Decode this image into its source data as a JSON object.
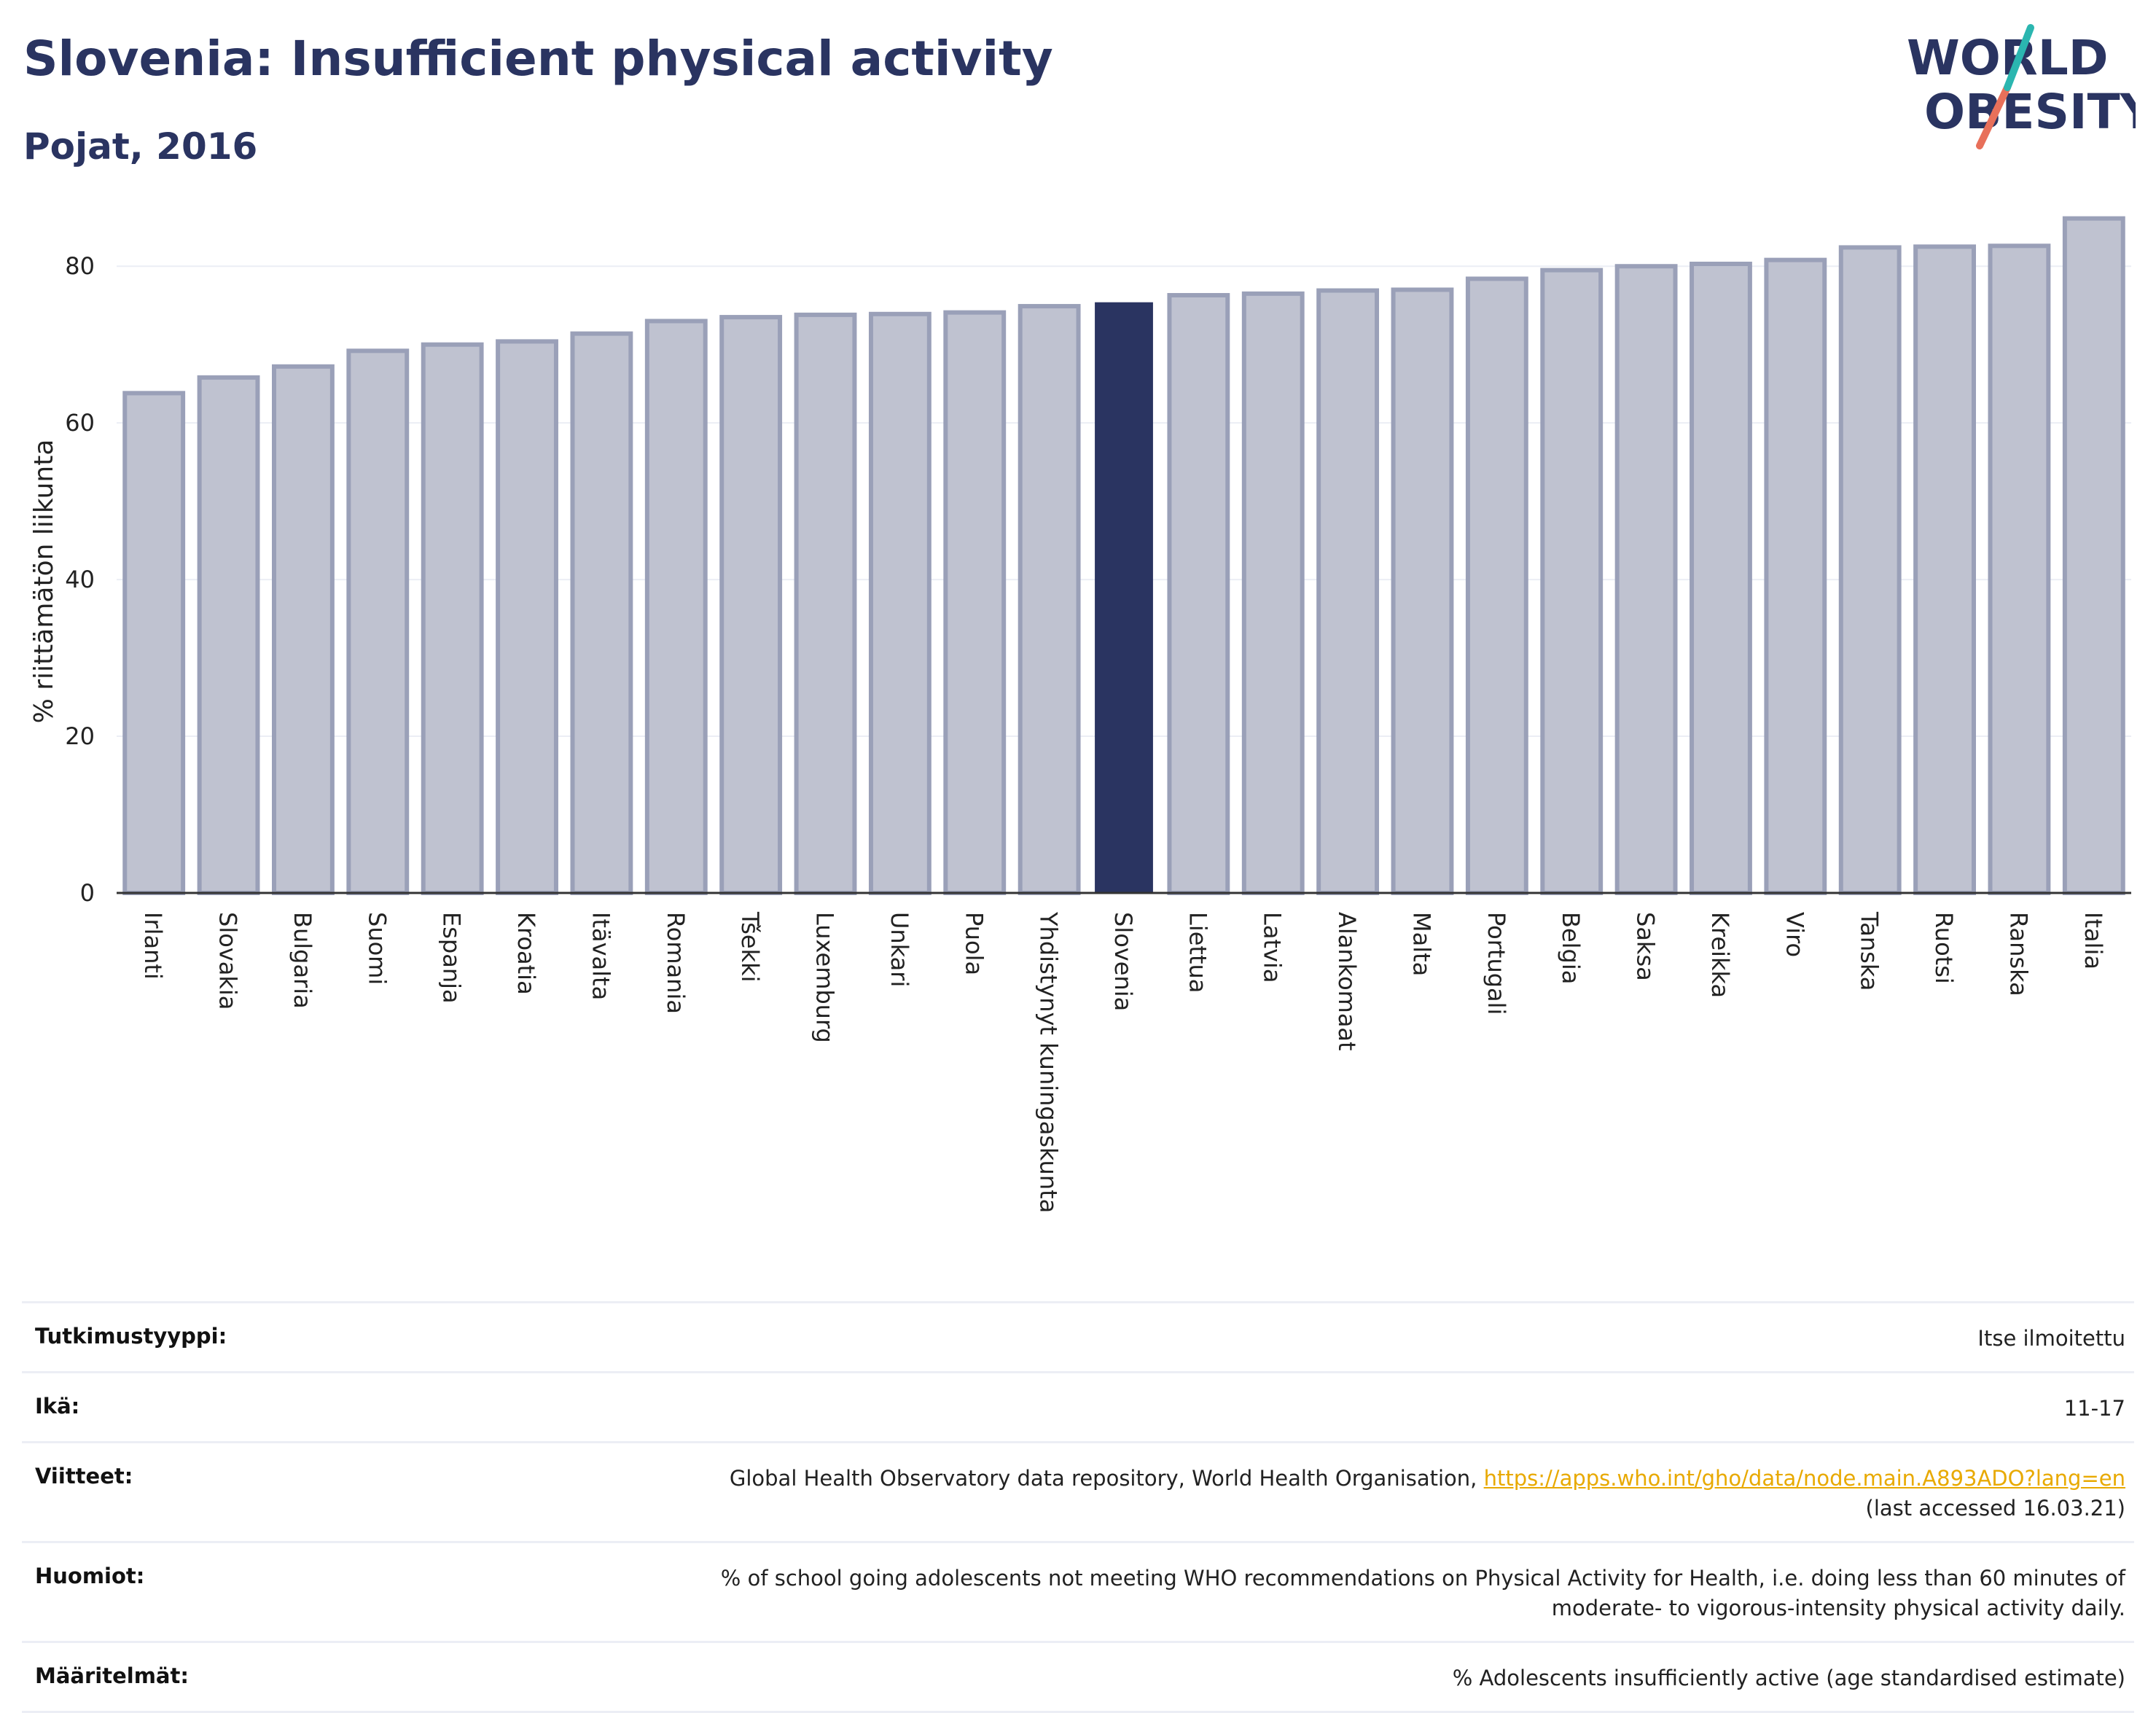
{
  "header": {
    "title": "Slovenia: Insufficient physical activity",
    "subtitle": "Pojat, 2016"
  },
  "logo": {
    "line1": "WORLD",
    "line2": "OBESITY"
  },
  "colors": {
    "bar": "#bfc2d0",
    "bar_edge": "#9aa0b8",
    "highlight": "#2a3461",
    "grid": "#eceef5"
  },
  "chart_data": {
    "type": "bar",
    "ylabel": "% riittämätön liikunta",
    "ylim": [
      0,
      87
    ],
    "yticks": [
      0,
      20,
      40,
      60,
      80
    ],
    "grid": true,
    "highlight": "Slovenia",
    "categories": [
      "Irlanti",
      "Slovakia",
      "Bulgaria",
      "Suomi",
      "Espanja",
      "Kroatia",
      "Itävalta",
      "Romania",
      "Tšekki",
      "Luxemburg",
      "Unkari",
      "Puola",
      "Yhdistynyt kuningaskunta",
      "Slovenia",
      "Liettua",
      "Latvia",
      "Alankomaat",
      "Malta",
      "Portugali",
      "Belgia",
      "Saksa",
      "Kreikka",
      "Viro",
      "Tanska",
      "Ruotsi",
      "Ranska",
      "Italia"
    ],
    "values": [
      63.8,
      65.8,
      67.2,
      69.2,
      70.0,
      70.4,
      71.4,
      73.0,
      73.5,
      73.8,
      73.9,
      74.1,
      74.9,
      75.4,
      76.3,
      76.5,
      76.9,
      77.0,
      78.4,
      79.5,
      80.0,
      80.3,
      80.8,
      82.4,
      82.5,
      82.6,
      86.1
    ]
  },
  "info": [
    {
      "key": "Tutkimustyyppi:",
      "value": "Itse ilmoitettu"
    },
    {
      "key": "Ikä:",
      "value": "11-17"
    },
    {
      "key": "Viitteet:",
      "value": "Global Health Observatory data repository, World Health Organisation, ",
      "link": "https://apps.who.int/gho/data/node.main.A893ADO?lang=en",
      "value2": "(last accessed 16.03.21)"
    },
    {
      "key": "Huomiot:",
      "value": "% of school going adolescents not meeting WHO recommendations on Physical Activity for Health, i.e. doing less than 60 minutes of",
      "value2": "moderate- to vigorous-intensity physical activity daily."
    },
    {
      "key": "Määritelmät:",
      "value": "% Adolescents insufficiently active (age standardised estimate)"
    }
  ]
}
